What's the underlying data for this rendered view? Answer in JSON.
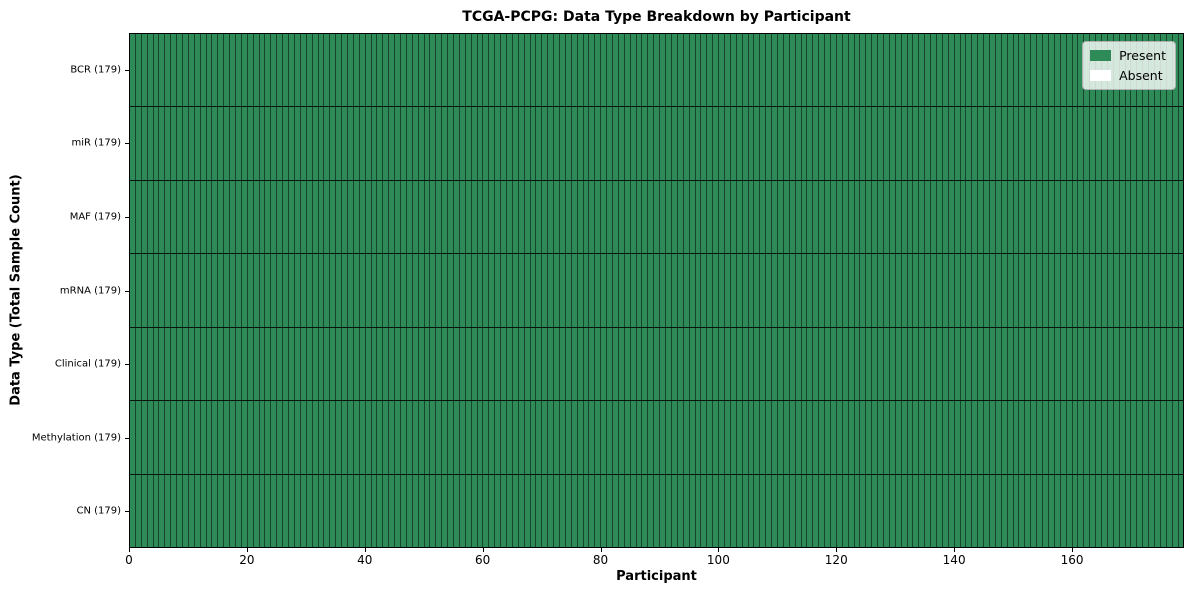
{
  "title": "TCGA-PCPG: Data Type Breakdown by Participant",
  "colors": {
    "present": "#2e8b57",
    "absent": "#ffffff",
    "grid_line": "#1a3d29",
    "background": "#ffffff"
  },
  "chart_data": {
    "type": "heatmap",
    "title": "TCGA-PCPG: Data Type Breakdown by Participant",
    "xlabel": "Participant",
    "ylabel": "Data Type (Total Sample Count)",
    "n_participants": 179,
    "xlim": [
      0,
      179
    ],
    "x_ticks": [
      0,
      20,
      40,
      60,
      80,
      100,
      120,
      140,
      160
    ],
    "grid": "cell-borders",
    "legend_position": "upper right",
    "legend": [
      {
        "label": "Present",
        "color": "#2e8b57"
      },
      {
        "label": "Absent",
        "color": "#ffffff"
      }
    ],
    "rows": [
      {
        "label": "BCR (179)",
        "data_type": "BCR",
        "total": 179,
        "present": 179,
        "absent": 0
      },
      {
        "label": "miR (179)",
        "data_type": "miR",
        "total": 179,
        "present": 179,
        "absent": 0
      },
      {
        "label": "MAF (179)",
        "data_type": "MAF",
        "total": 179,
        "present": 179,
        "absent": 0
      },
      {
        "label": "mRNA (179)",
        "data_type": "mRNA",
        "total": 179,
        "present": 179,
        "absent": 0
      },
      {
        "label": "Clinical (179)",
        "data_type": "Clinical",
        "total": 179,
        "present": 179,
        "absent": 0
      },
      {
        "label": "Methylation (179)",
        "data_type": "Methylation",
        "total": 179,
        "present": 179,
        "absent": 0
      },
      {
        "label": "CN (179)",
        "data_type": "CN",
        "total": 179,
        "present": 179,
        "absent": 0
      }
    ]
  }
}
